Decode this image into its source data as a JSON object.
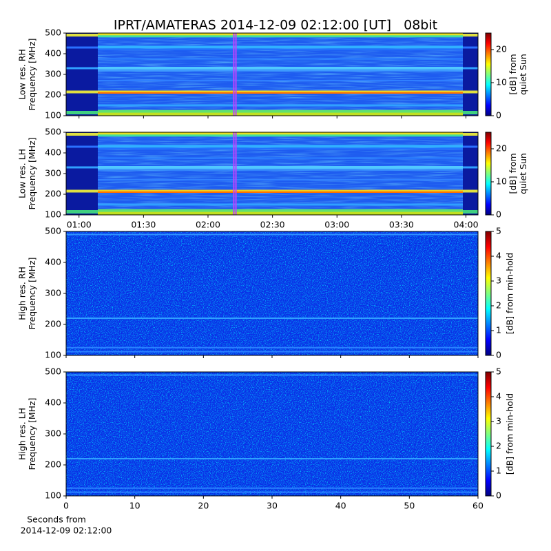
{
  "chart_data": [
    {
      "type": "heatmap",
      "title": "IPRT/AMATERAS 2014-12-09 02:12:00 [UT]   08bit",
      "ylabel": [
        "Low res. RH",
        "Frequency [MHz]"
      ],
      "ylim": [
        100,
        500
      ],
      "yticks": [
        100,
        200,
        300,
        400,
        500
      ],
      "xlim": [
        54,
        245.6
      ],
      "highlight": [
        132,
        133
      ],
      "highlight_color": "#c040ff",
      "colormap": "jet",
      "clim": [
        0,
        25
      ],
      "cticks": [
        0,
        10,
        20
      ],
      "clabel": [
        "[dB] from",
        "quiet Sun"
      ]
    },
    {
      "type": "heatmap",
      "ylabel": [
        "Low res. LH",
        "Frequency [MHz]"
      ],
      "ylim": [
        100,
        500
      ],
      "yticks": [
        100,
        200,
        300,
        400,
        500
      ],
      "xlim": [
        54,
        245.6
      ],
      "xticks": [
        {
          "value": 60,
          "label": "01:00"
        },
        {
          "value": 90,
          "label": "01:30"
        },
        {
          "value": 120,
          "label": "02:00"
        },
        {
          "value": 150,
          "label": "02:30"
        },
        {
          "value": 180,
          "label": "03:00"
        },
        {
          "value": 210,
          "label": "03:30"
        },
        {
          "value": 240,
          "label": "04:00"
        }
      ],
      "highlight": [
        132,
        133
      ],
      "highlight_color": "#c040ff",
      "colormap": "jet",
      "clim": [
        0,
        25
      ],
      "cticks": [
        0,
        10,
        20
      ],
      "clabel": [
        "[dB] from",
        "quiet Sun"
      ]
    },
    {
      "type": "heatmap",
      "ylabel": [
        "High res. RH",
        "Frequency [MHz]"
      ],
      "ylim": [
        100,
        500
      ],
      "yticks": [
        100,
        200,
        300,
        400,
        500
      ],
      "xlim": [
        0,
        60
      ],
      "colormap": "jet",
      "clim": [
        0,
        5
      ],
      "cticks": [
        0,
        1,
        2,
        3,
        4,
        5
      ],
      "clabel": [
        "[dB] from min-hold"
      ]
    },
    {
      "type": "heatmap",
      "ylabel": [
        "High res. LH",
        "Frequency [MHz]"
      ],
      "ylim": [
        100,
        500
      ],
      "yticks": [
        100,
        200,
        300,
        400,
        500
      ],
      "xlim": [
        0,
        60
      ],
      "xticks": [
        0,
        10,
        20,
        30,
        40,
        50,
        60
      ],
      "xlabel": [
        "Seconds from",
        "2014-12-09 02:12:00"
      ],
      "colormap": "jet",
      "clim": [
        0,
        5
      ],
      "cticks": [
        0,
        1,
        2,
        3,
        4,
        5
      ],
      "clabel": [
        "[dB] from min-hold"
      ]
    }
  ]
}
